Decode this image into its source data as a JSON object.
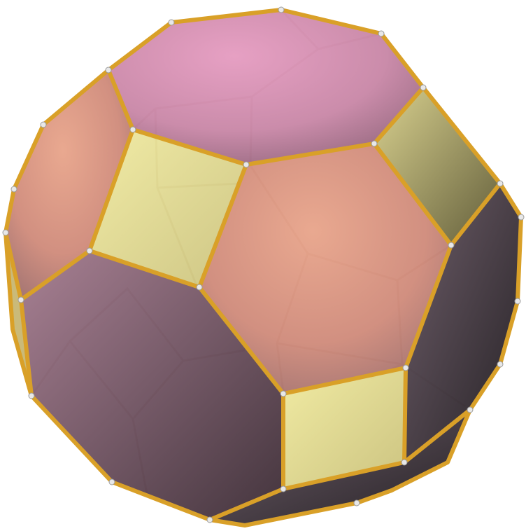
{
  "figure": {
    "subject": "truncated-cuboctahedron-polyhedron",
    "face_kinds": {
      "octagon": {
        "color": "#d98c8a"
      },
      "hexagon": {
        "color": "#d88fb0"
      },
      "square": {
        "color": "#e9e28e"
      }
    },
    "edge_color": "#d9a028",
    "vertex_color": "#e8e8e8",
    "background": "#ffffff"
  }
}
